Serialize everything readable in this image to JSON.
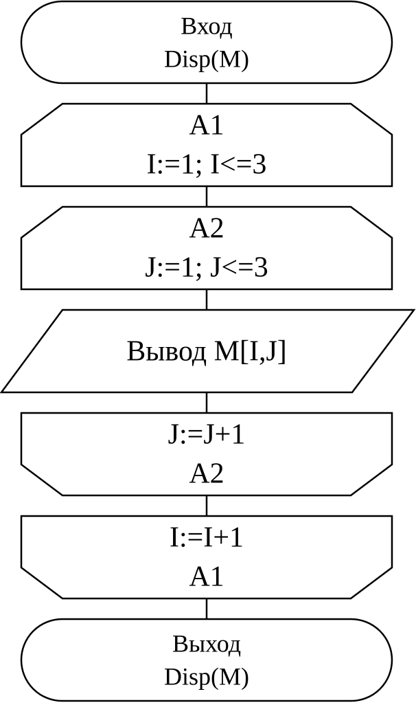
{
  "flowchart": {
    "start": {
      "shape": "terminator",
      "line1": "Вход",
      "line2": "Disp(M)"
    },
    "loop_outer_begin": {
      "shape": "loop-start",
      "line1": "A1",
      "line2": "I:=1; I<=3"
    },
    "loop_inner_begin": {
      "shape": "loop-start",
      "line1": "A2",
      "line2": "J:=1; J<=3"
    },
    "output": {
      "shape": "parallelogram",
      "line1": "Вывод M[I,J]"
    },
    "loop_inner_end": {
      "shape": "loop-end",
      "line1": "J:=J+1",
      "line2": "A2"
    },
    "loop_outer_end": {
      "shape": "loop-end",
      "line1": "I:=I+1",
      "line2": "A1"
    },
    "end": {
      "shape": "terminator",
      "line1": "Выход",
      "line2": "Disp(M)"
    }
  },
  "colors": {
    "stroke": "#000000",
    "background": "#ffffff"
  }
}
